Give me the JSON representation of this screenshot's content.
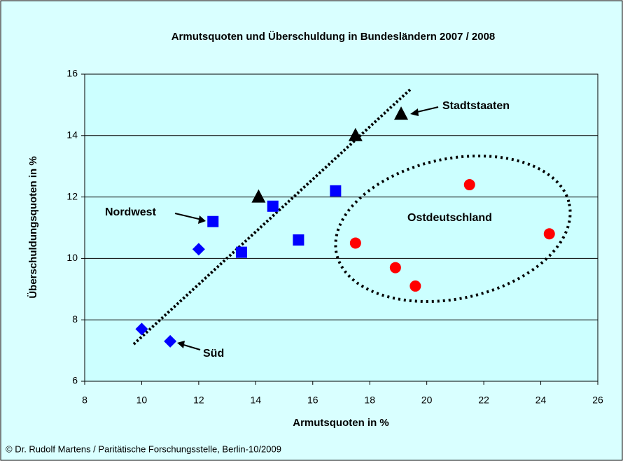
{
  "chart_data": {
    "type": "scatter",
    "title": "Armutsquoten und Überschuldung in Bundesländern 2007 / 2008",
    "xlabel": "Armutsquoten in %",
    "ylabel": "Überschuldungsquoten in %",
    "xlim": [
      8,
      26
    ],
    "xticks": [
      8,
      10,
      12,
      14,
      16,
      18,
      20,
      22,
      24,
      26
    ],
    "ylim": [
      6,
      16
    ],
    "yticks": [
      6,
      8,
      10,
      12,
      14,
      16
    ],
    "grid": true,
    "series": [
      {
        "marker": "diamond",
        "color": "#0000ff",
        "x": [
          10,
          11,
          12
        ],
        "values": [
          7.7,
          7.3,
          10.3
        ]
      },
      {
        "marker": "square",
        "color": "#0000ff",
        "x": [
          12.5,
          13.5,
          14.6,
          15.5,
          16.8
        ],
        "values": [
          11.2,
          10.2,
          11.7,
          10.6,
          12.2
        ]
      },
      {
        "marker": "triangle",
        "color": "#000000",
        "x": [
          14.1,
          17.5,
          19.1
        ],
        "values": [
          12.0,
          14.0,
          14.7
        ]
      },
      {
        "marker": "circle",
        "color": "#ff0000",
        "x": [
          17.5,
          18.9,
          19.6,
          21.5,
          24.3
        ],
        "values": [
          10.5,
          9.7,
          9.1,
          12.4,
          10.8
        ]
      }
    ],
    "annotations": [
      "Stadtstaaten",
      "Nordwest",
      "Ostdeutschland",
      "Süd"
    ],
    "footer": "© Dr. Rudolf Martens / Paritätische Forschungsstelle, Berlin-10/2009"
  }
}
